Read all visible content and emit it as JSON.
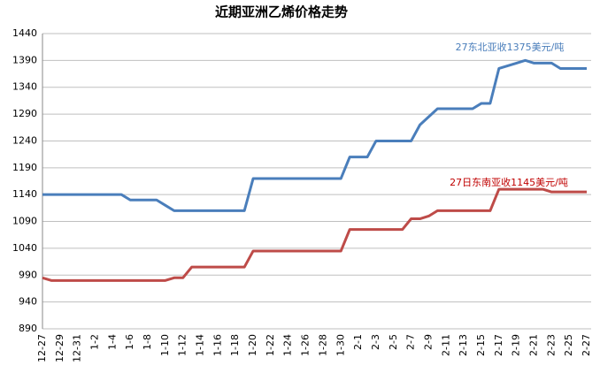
{
  "chart_data": {
    "type": "line",
    "title": "近期亚洲乙烯价格走势",
    "categories": [
      "12-27",
      null,
      "12-29",
      null,
      "12-31",
      null,
      "1-2",
      null,
      "1-4",
      null,
      "1-6",
      null,
      "1-8",
      null,
      "1-10",
      null,
      "1-12",
      null,
      "1-14",
      null,
      "1-16",
      null,
      "1-18",
      null,
      "1-20",
      null,
      "1-22",
      null,
      "1-24",
      null,
      "1-26",
      null,
      "1-28",
      null,
      "1-30",
      null,
      "2-1",
      null,
      "2-3",
      null,
      "2-5",
      null,
      "2-7",
      null,
      "2-9",
      null,
      "2-11",
      null,
      "2-13",
      null,
      "2-15",
      null,
      "2-17",
      null,
      "2-19",
      null,
      "2-21",
      null,
      "2-23",
      null,
      "2-25",
      null,
      "2-27"
    ],
    "series": [
      {
        "color": "#4a7ebb",
        "values": [
          1140,
          1140,
          1140,
          1140,
          1140,
          1140,
          1140,
          1140,
          1140,
          1140,
          1130,
          1130,
          1130,
          1130,
          1120,
          1110,
          1110,
          1110,
          1110,
          1110,
          1110,
          1110,
          1110,
          1110,
          1170,
          1170,
          1170,
          1170,
          1170,
          1170,
          1170,
          1170,
          1170,
          1170,
          1170,
          1210,
          1210,
          1210,
          1240,
          1240,
          1240,
          1240,
          1240,
          1270,
          1285,
          1300,
          1300,
          1300,
          1300,
          1300,
          1310,
          1310,
          1375,
          1380,
          1385,
          1390,
          1385,
          1385,
          1385,
          1375,
          1375,
          1375,
          1375
        ]
      },
      {
        "color": "#be4b48",
        "values": [
          985,
          980,
          980,
          980,
          980,
          980,
          980,
          980,
          980,
          980,
          980,
          980,
          980,
          980,
          980,
          985,
          985,
          1005,
          1005,
          1005,
          1005,
          1005,
          1005,
          1005,
          1035,
          1035,
          1035,
          1035,
          1035,
          1035,
          1035,
          1035,
          1035,
          1035,
          1035,
          1075,
          1075,
          1075,
          1075,
          1075,
          1075,
          1075,
          1095,
          1095,
          1100,
          1110,
          1110,
          1110,
          1110,
          1110,
          1110,
          1110,
          1150,
          1150,
          1150,
          1150,
          1150,
          1150,
          1145,
          1145,
          1145,
          1145,
          1145
        ]
      }
    ],
    "annotations": [
      {
        "text": "27东北亚收1375美元/吨",
        "color": "#4a7ebb"
      },
      {
        "text": "27日东南亚收1145美元/吨",
        "color": "#c00000"
      }
    ],
    "ylim": [
      890,
      1440
    ],
    "yticks": [
      890,
      940,
      990,
      1040,
      1090,
      1140,
      1190,
      1240,
      1290,
      1340,
      1390,
      1440
    ],
    "grid": true
  }
}
